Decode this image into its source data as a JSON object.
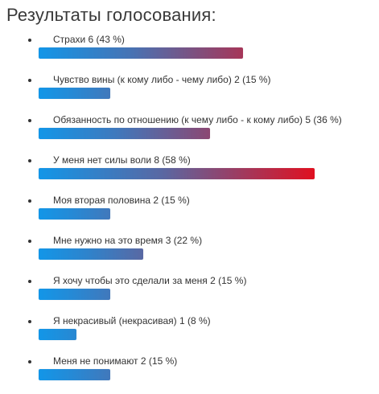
{
  "poll": {
    "title": "Результаты голосования:",
    "colors": {
      "bar_start": "#1296e8",
      "bar_end": "#e01020"
    },
    "max_percent": 58,
    "items": [
      {
        "label": "Страхи 6 (43 %)",
        "votes": 6,
        "percent": 43
      },
      {
        "label": "Чувство вины (к кому либо - чему либо) 2 (15 %)",
        "votes": 2,
        "percent": 15
      },
      {
        "label": "Обязанность по отношению (к чему либо - к кому либо) 5 (36 %)",
        "votes": 5,
        "percent": 36
      },
      {
        "label": "У меня нет силы воли 8 (58 %)",
        "votes": 8,
        "percent": 58
      },
      {
        "label": "Моя вторая половина 2 (15 %)",
        "votes": 2,
        "percent": 15
      },
      {
        "label": "Мне нужно на это время 3 (22 %)",
        "votes": 3,
        "percent": 22
      },
      {
        "label": "Я хочу чтобы это сделали за меня 2 (15 %)",
        "votes": 2,
        "percent": 15
      },
      {
        "label": "Я некрасивый (некрасивая) 1 (8 %)",
        "votes": 1,
        "percent": 8
      },
      {
        "label": "Меня не понимают 2 (15 %)",
        "votes": 2,
        "percent": 15
      }
    ]
  }
}
